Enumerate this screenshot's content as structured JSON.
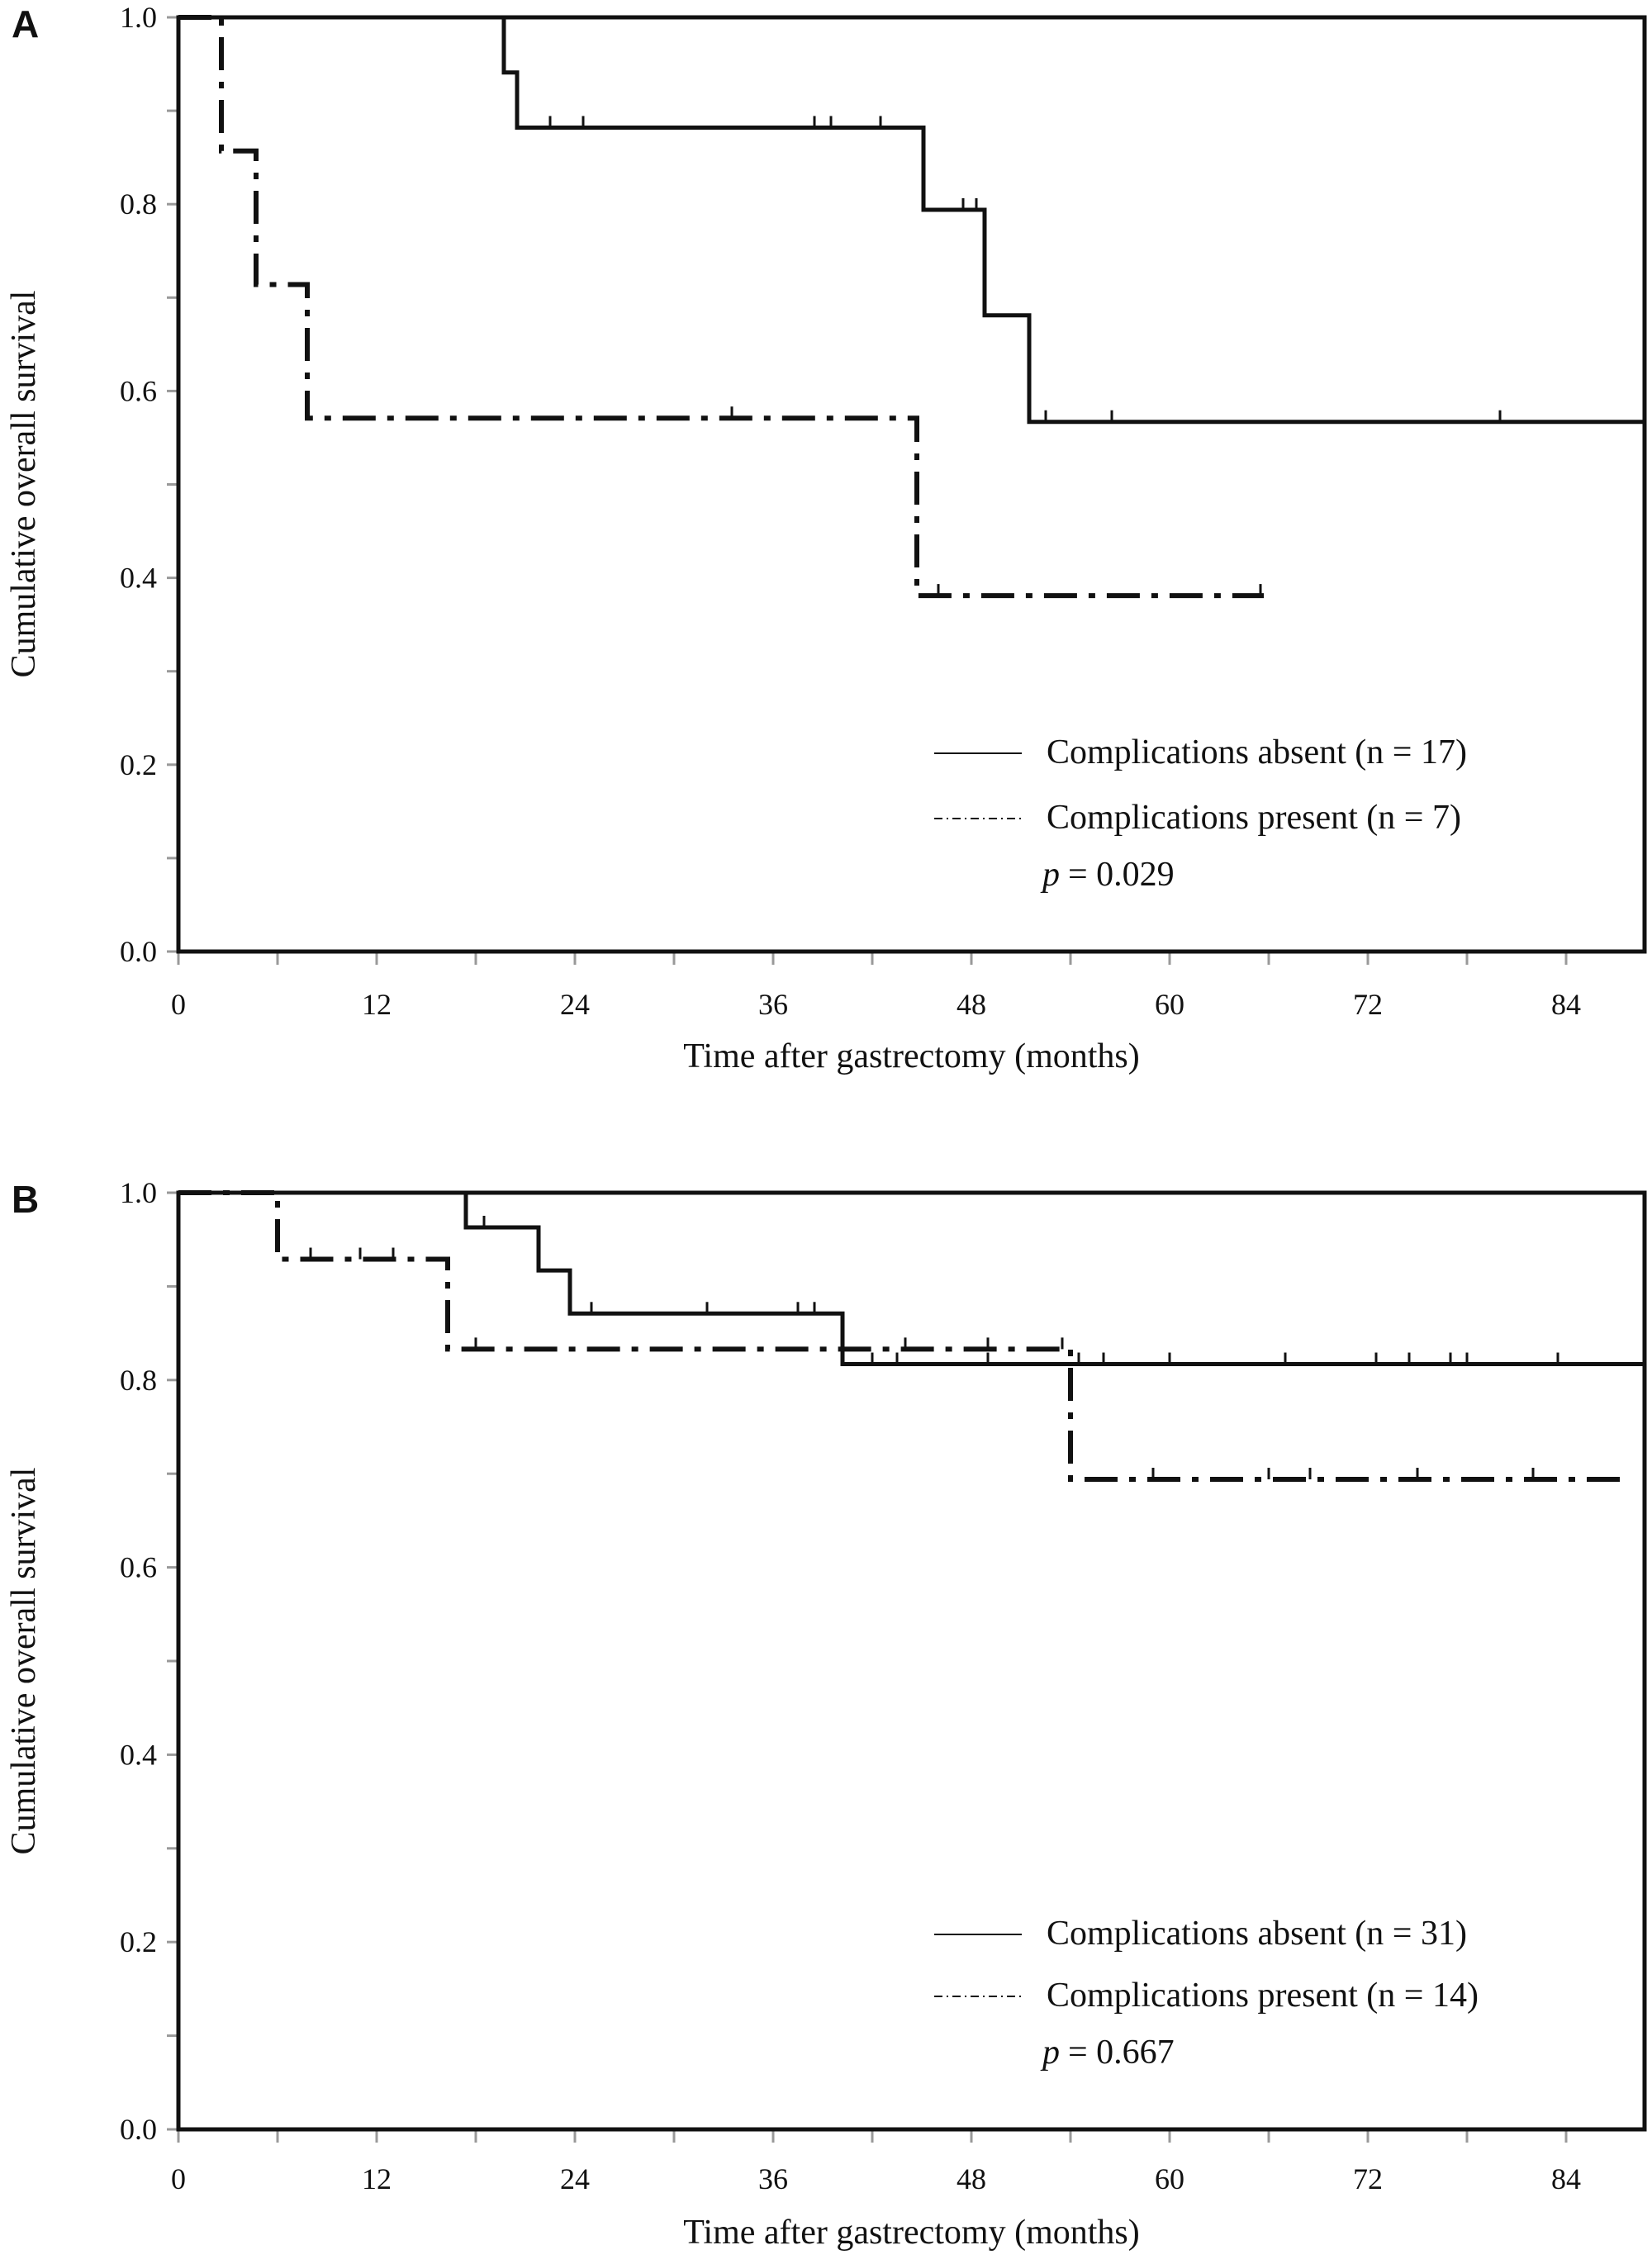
{
  "chart_data": [
    {
      "type": "line",
      "panel_label": "A",
      "xlabel": "Time after gastrectomy (months)",
      "ylabel": "Cumulative overall survival",
      "xlim": [
        0,
        88.75
      ],
      "ylim": [
        0,
        1.0
      ],
      "xticks": [
        0,
        12,
        24,
        36,
        48,
        60,
        72,
        84
      ],
      "yticks": [
        "0.0",
        "0.2",
        "0.4",
        "0.6",
        "0.8",
        "1.0"
      ],
      "grid": false,
      "legend_position": "bottom-right",
      "p_label": "p",
      "p_value": "= 0.029",
      "series": [
        {
          "name": "Complications absent (n = 17)",
          "style": "solid",
          "steps": [
            [
              0,
              1.0
            ],
            [
              19.7,
              0.941
            ],
            [
              20.5,
              0.882
            ],
            [
              45.1,
              0.794
            ],
            [
              48.8,
              0.681
            ],
            [
              51.5,
              0.567
            ]
          ],
          "end": 88.75,
          "censored": [
            22.5,
            24.5,
            38.5,
            39.5,
            42.5,
            47.5,
            48.3,
            52.5,
            56.5,
            80
          ]
        },
        {
          "name": "Complications present (n = 7)",
          "style": "dash-dot",
          "steps": [
            [
              0,
              1.0
            ],
            [
              2.6,
              0.857
            ],
            [
              4.7,
              0.714
            ],
            [
              7.8,
              0.571
            ],
            [
              44.7,
              0.381
            ]
          ],
          "end": 65.7,
          "censored": [
            33.5,
            46,
            65.5
          ]
        }
      ]
    },
    {
      "type": "line",
      "panel_label": "B",
      "xlabel": "Time after gastrectomy (months)",
      "ylabel": "Cumulative overall survival",
      "xlim": [
        0,
        88.75
      ],
      "ylim": [
        0,
        1.0
      ],
      "xticks": [
        0,
        12,
        24,
        36,
        48,
        60,
        72,
        84
      ],
      "yticks": [
        "0.0",
        "0.2",
        "0.4",
        "0.6",
        "0.8",
        "1.0"
      ],
      "grid": false,
      "legend_position": "bottom-right",
      "p_label": "p",
      "p_value": "= 0.667",
      "series": [
        {
          "name": "Complications absent (n = 31)",
          "style": "solid",
          "steps": [
            [
              0,
              1.0
            ],
            [
              17.4,
              0.963
            ],
            [
              21.8,
              0.917
            ],
            [
              23.7,
              0.871
            ],
            [
              40.2,
              0.817
            ]
          ],
          "end": 88.75,
          "censored": [
            18.5,
            25,
            32,
            37.5,
            38.5,
            42,
            43.5,
            49,
            54.5,
            56,
            60,
            67,
            72.5,
            74.5,
            77,
            78,
            83.5
          ]
        },
        {
          "name": "Complications present (n = 14)",
          "style": "dash-dot",
          "steps": [
            [
              0,
              1.0
            ],
            [
              6.0,
              0.929
            ],
            [
              16.3,
              0.833
            ],
            [
              54.0,
              0.694
            ]
          ],
          "end": 87.5,
          "censored": [
            8,
            11,
            13,
            18,
            44,
            49,
            53.5,
            59,
            66,
            68.5,
            75,
            82
          ]
        }
      ]
    }
  ]
}
